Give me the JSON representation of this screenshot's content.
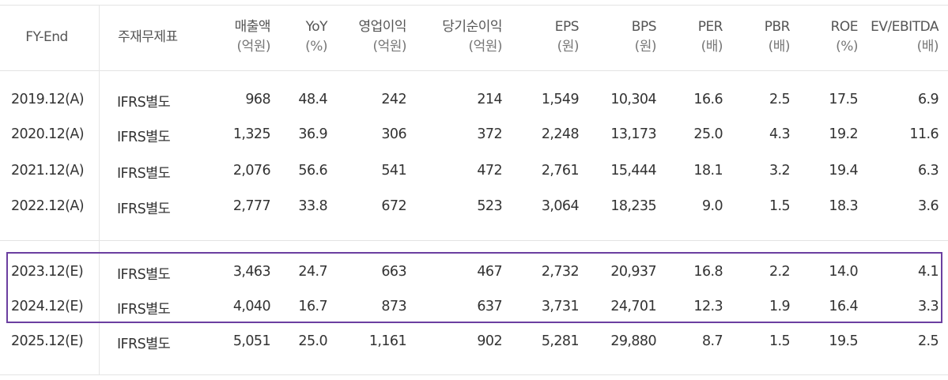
{
  "columns": [
    {
      "label": "FY-End",
      "unit": ""
    },
    {
      "label": "주재무제표",
      "unit": ""
    },
    {
      "label": "매출액",
      "unit": "(억원)"
    },
    {
      "label": "YoY",
      "unit": "(%)"
    },
    {
      "label": "영업이익",
      "unit": "(억원)"
    },
    {
      "label": "당기순이익",
      "unit": "(억원)"
    },
    {
      "label": "EPS",
      "unit": "(원)"
    },
    {
      "label": "BPS",
      "unit": "(원)"
    },
    {
      "label": "PER",
      "unit": "(배)"
    },
    {
      "label": "PBR",
      "unit": "(배)"
    },
    {
      "label": "ROE",
      "unit": "(%)"
    },
    {
      "label": "EV/EBITDA",
      "unit": "(배)"
    }
  ],
  "rows": [
    [
      "2019.12(A)",
      "IFRS별도",
      "968",
      "48.4",
      "242",
      "214",
      "1,549",
      "10,304",
      "16.6",
      "2.5",
      "17.5",
      "6.9"
    ],
    [
      "2020.12(A)",
      "IFRS별도",
      "1,325",
      "36.9",
      "306",
      "372",
      "2,248",
      "13,173",
      "25.0",
      "4.3",
      "19.2",
      "11.6"
    ],
    [
      "2021.12(A)",
      "IFRS별도",
      "2,076",
      "56.6",
      "541",
      "472",
      "2,761",
      "15,444",
      "18.1",
      "3.2",
      "19.4",
      "6.3"
    ],
    [
      "2022.12(A)",
      "IFRS별도",
      "2,777",
      "33.8",
      "672",
      "523",
      "3,064",
      "18,235",
      "9.0",
      "1.5",
      "18.3",
      "3.6"
    ],
    [
      "2023.12(E)",
      "IFRS별도",
      "3,463",
      "24.7",
      "663",
      "467",
      "2,732",
      "20,937",
      "16.8",
      "2.2",
      "14.0",
      "4.1"
    ],
    [
      "2024.12(E)",
      "IFRS별도",
      "4,040",
      "16.7",
      "873",
      "637",
      "3,731",
      "24,701",
      "12.3",
      "1.9",
      "16.4",
      "3.3"
    ],
    [
      "2025.12(E)",
      "IFRS별도",
      "5,051",
      "25.0",
      "1,161",
      "902",
      "5,281",
      "29,880",
      "8.7",
      "1.5",
      "19.5",
      "2.5"
    ]
  ],
  "highlight_color": "#6b3fa0"
}
